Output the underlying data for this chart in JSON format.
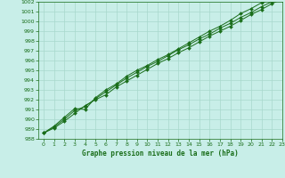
{
  "title": "Graphe pression niveau de la mer (hPa)",
  "background_color": "#c8eee8",
  "grid_color": "#a8d8cc",
  "line_color": "#1a6e1a",
  "marker_color": "#1a6e1a",
  "xlim": [
    -0.5,
    23
  ],
  "ylim": [
    988,
    1002
  ],
  "xticks": [
    0,
    1,
    2,
    3,
    4,
    5,
    6,
    7,
    8,
    9,
    10,
    11,
    12,
    13,
    14,
    15,
    16,
    17,
    18,
    19,
    20,
    21,
    22,
    23
  ],
  "yticks": [
    988,
    989,
    990,
    991,
    992,
    993,
    994,
    995,
    996,
    997,
    998,
    999,
    1000,
    1001,
    1002
  ],
  "series1": [
    988.6,
    989.2,
    990.0,
    990.9,
    991.3,
    992.1,
    992.8,
    993.5,
    994.2,
    994.8,
    995.4,
    995.9,
    996.5,
    997.1,
    997.6,
    998.2,
    998.7,
    999.3,
    999.8,
    1000.4,
    1000.9,
    1001.5,
    1002.0,
    1002.2
  ],
  "series2": [
    988.6,
    989.3,
    990.2,
    991.1,
    991.0,
    992.2,
    993.0,
    993.6,
    994.4,
    995.0,
    995.5,
    996.1,
    996.6,
    997.2,
    997.8,
    998.4,
    999.0,
    999.5,
    1000.1,
    1000.8,
    1001.3,
    1001.9,
    1002.2,
    1002.4
  ],
  "series3": [
    988.6,
    989.1,
    989.8,
    990.6,
    991.4,
    992.0,
    992.5,
    993.3,
    993.9,
    994.5,
    995.1,
    995.7,
    996.2,
    996.8,
    997.3,
    997.9,
    998.5,
    999.0,
    999.5,
    1000.1,
    1000.7,
    1001.2,
    1001.8,
    1002.3
  ]
}
